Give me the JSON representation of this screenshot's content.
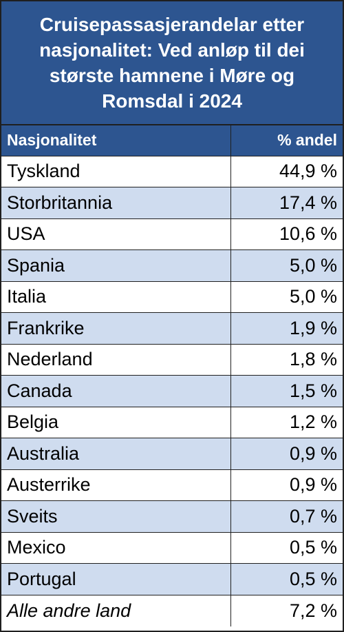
{
  "title": {
    "line1": "Cruisepassasjerandelar etter",
    "line2": "nasjonalitet: Ved anløp til dei",
    "line3": "største hamnene i Møre og",
    "line4": "Romsdal i 2024"
  },
  "colors": {
    "header_bg": "#2d5590",
    "stripe": "#cfdcef"
  },
  "chart_data": {
    "type": "table",
    "title": "Cruisepassasjerandelar etter nasjonalitet: Ved anløp til dei største hamnene i Møre og Romsdal i 2024",
    "columns": [
      "Nasjonalitet",
      "% andel"
    ],
    "rows": [
      {
        "country": "Tyskland",
        "share": "44,9 %",
        "value": 44.9
      },
      {
        "country": "Storbritannia",
        "share": "17,4 %",
        "value": 17.4
      },
      {
        "country": "USA",
        "share": "10,6 %",
        "value": 10.6
      },
      {
        "country": "Spania",
        "share": "5,0 %",
        "value": 5.0
      },
      {
        "country": "Italia",
        "share": "5,0 %",
        "value": 5.0
      },
      {
        "country": "Frankrike",
        "share": "1,9 %",
        "value": 1.9
      },
      {
        "country": "Nederland",
        "share": "1,8 %",
        "value": 1.8
      },
      {
        "country": "Canada",
        "share": "1,5 %",
        "value": 1.5
      },
      {
        "country": "Belgia",
        "share": "1,2 %",
        "value": 1.2
      },
      {
        "country": "Australia",
        "share": "0,9 %",
        "value": 0.9
      },
      {
        "country": "Austerrike",
        "share": "0,9 %",
        "value": 0.9
      },
      {
        "country": "Sveits",
        "share": "0,7 %",
        "value": 0.7
      },
      {
        "country": "Mexico",
        "share": "0,5 %",
        "value": 0.5
      },
      {
        "country": "Portugal",
        "share": "0,5 %",
        "value": 0.5
      },
      {
        "country": "Alle andre land",
        "share": "7,2 %",
        "value": 7.2,
        "italic": true
      }
    ]
  }
}
